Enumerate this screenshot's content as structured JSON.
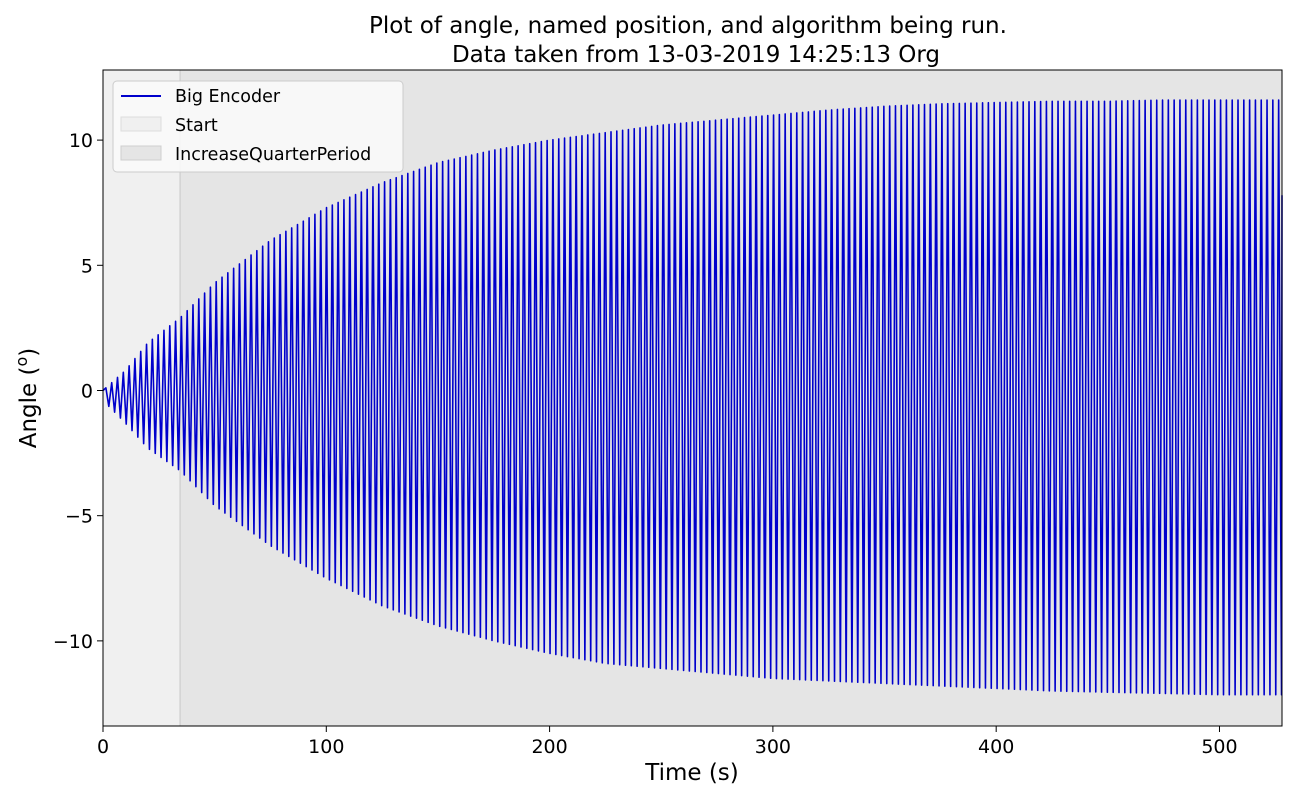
{
  "chart_data": {
    "type": "line",
    "title": "Plot of angle, named position, and algorithm being run.",
    "subtitle": "Data taken from 13-03-2019 14:25:13 Org",
    "xlabel": "Time (s)",
    "ylabel": "Angle (",
    "ylabel_sup": "o",
    "ylabel_end": ")",
    "xlim": [
      0,
      528
    ],
    "ylim": [
      -13.4,
      12.8
    ],
    "x_ticks": [
      0,
      100,
      200,
      300,
      400,
      500
    ],
    "x_tick_labels": [
      "0",
      "100",
      "200",
      "300",
      "400",
      "500"
    ],
    "y_ticks": [
      10,
      5,
      0,
      -5,
      -10
    ],
    "y_tick_labels": [
      "10",
      "5",
      "0",
      "−5",
      "−10"
    ],
    "grid": false,
    "legend_position": "top-left",
    "regions": [
      {
        "name": "Start",
        "x_start": 0,
        "x_end": 34.5,
        "color": "#f0f0f0"
      },
      {
        "name": "IncreaseQuarterPeriod",
        "x_start": 34.5,
        "x_end": 528,
        "color": "#e5e5e5"
      }
    ],
    "series": [
      {
        "name": "Big Encoder",
        "color": "#0000cc",
        "oscillation_period_s": 2.6,
        "envelope": {
          "t": [
            0,
            10,
            20,
            34.5,
            50,
            75,
            100,
            125,
            150,
            175,
            200,
            225,
            250,
            275,
            300,
            325,
            350,
            375,
            400,
            425,
            450,
            475,
            500,
            528
          ],
          "max": [
            0.0,
            0.8,
            1.9,
            2.9,
            4.3,
            6.0,
            7.3,
            8.3,
            9.1,
            9.6,
            10.0,
            10.3,
            10.6,
            10.8,
            11.0,
            11.2,
            11.35,
            11.45,
            11.5,
            11.55,
            11.55,
            11.6,
            11.6,
            11.6
          ],
          "min": [
            -0.4,
            -1.3,
            -2.3,
            -3.2,
            -4.6,
            -6.2,
            -7.5,
            -8.6,
            -9.4,
            -10.0,
            -10.5,
            -10.9,
            -11.1,
            -11.3,
            -11.5,
            -11.6,
            -11.7,
            -11.8,
            -11.9,
            -12.0,
            -12.05,
            -12.1,
            -12.15,
            -12.15
          ]
        },
        "last_value": 7.8
      }
    ]
  },
  "legend": {
    "line_label": "Big Encoder",
    "region_labels": [
      "Start",
      "IncreaseQuarterPeriod"
    ]
  }
}
